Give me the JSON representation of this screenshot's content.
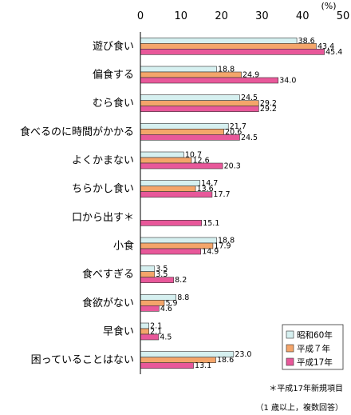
{
  "chart_data": {
    "type": "bar",
    "orientation": "horizontal",
    "unit": "(%)",
    "xlim": [
      0,
      50
    ],
    "xticks": [
      0,
      10,
      20,
      30,
      40,
      50
    ],
    "grid": false,
    "legend_position": "bottom-right",
    "categories": [
      "遊び食い",
      "偏食する",
      "むら食い",
      "食べるのに時間がかかる",
      "よくかまない",
      "ちらかし食い",
      "口から出す＊",
      "小食",
      "食べすぎる",
      "食欲がない",
      "早食い",
      "困っていることはない"
    ],
    "series": [
      {
        "name": "昭和60年",
        "color": "#d6f0f0",
        "values": [
          38.6,
          18.8,
          24.5,
          21.7,
          10.7,
          14.7,
          null,
          18.8,
          3.5,
          8.8,
          2.1,
          23.0
        ]
      },
      {
        "name": "平成７年",
        "color": "#f4a56a",
        "values": [
          43.4,
          24.9,
          29.2,
          20.6,
          12.6,
          13.6,
          null,
          17.9,
          3.5,
          5.9,
          2.1,
          18.6
        ]
      },
      {
        "name": "平成17年",
        "color": "#e8589a",
        "values": [
          45.4,
          34.0,
          29.2,
          24.5,
          20.3,
          17.7,
          15.1,
          14.9,
          8.2,
          4.6,
          4.5,
          13.1
        ]
      }
    ],
    "value_labels": [
      [
        "38.6",
        "18.8",
        "24.5",
        "21.7",
        "10.7",
        "14.7",
        "",
        "18.8",
        "3.5",
        "8.8",
        "2.1",
        "23.0"
      ],
      [
        "43.4",
        "24.9",
        "29.2",
        "20.6",
        "12.6",
        "13.6",
        "",
        "17.9",
        "3.5",
        "5.9",
        "2.1",
        "18.6"
      ],
      [
        "45.4",
        "34.0",
        "29.2",
        "24.5",
        "20.3",
        "17.7",
        "15.1",
        "14.9",
        "8.2",
        "4.6",
        "4.5",
        "13.1"
      ]
    ],
    "notes": [
      "＊平成17年新規項目",
      "（1 歳以上，複数回答）"
    ]
  }
}
